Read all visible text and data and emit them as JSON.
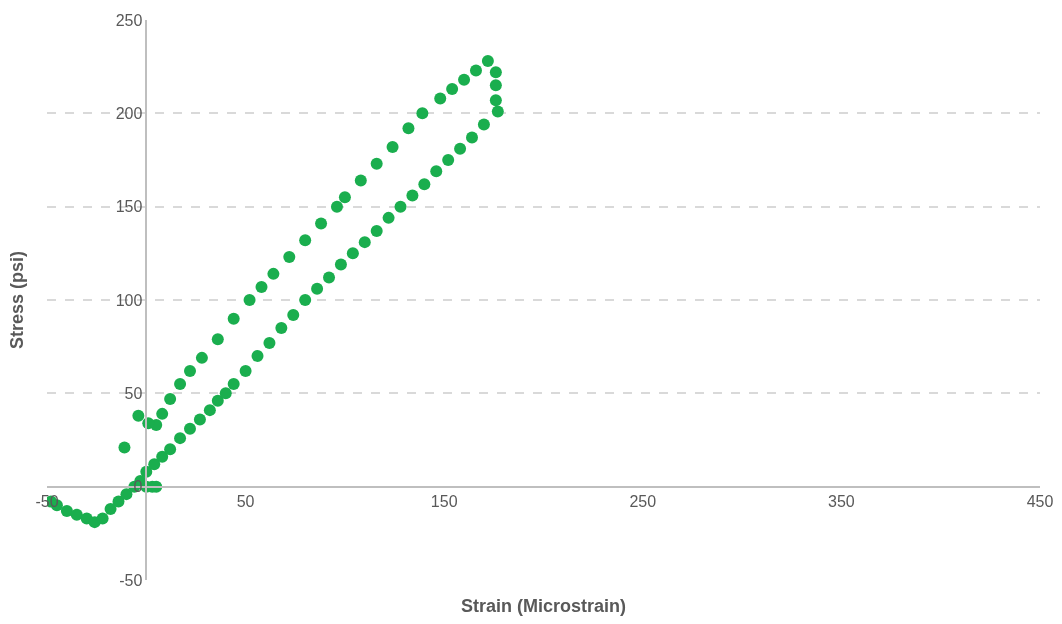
{
  "chart_data": {
    "type": "scatter",
    "xlabel": "Strain (Microstrain)",
    "ylabel": "Stress (psi)",
    "xlim": [
      -50,
      450
    ],
    "xticks": [
      -50,
      50,
      150,
      250,
      350,
      450
    ],
    "ylim": [
      -50,
      250
    ],
    "yticks": [
      -50,
      0,
      50,
      100,
      150,
      200,
      250
    ],
    "grid": "y",
    "marker": "circle",
    "series": [
      {
        "color": "#1aae4e",
        "x": [
          -48,
          -45,
          -40,
          -35,
          -30,
          -26,
          -22,
          -18,
          -14,
          -10,
          -6,
          -3,
          0,
          4,
          8,
          12,
          17,
          22,
          27,
          32,
          36,
          40,
          44,
          50,
          56,
          62,
          68,
          74,
          80,
          86,
          92,
          98,
          104,
          110,
          116,
          122,
          128,
          134,
          140,
          146,
          152,
          158,
          164,
          170,
          177,
          176,
          176,
          176,
          172,
          166,
          160,
          154,
          148,
          139,
          132,
          124,
          116,
          108,
          100,
          96,
          88,
          80,
          72,
          64,
          58,
          52,
          44,
          36,
          28,
          22,
          17,
          12,
          8,
          5,
          1,
          -4,
          -11,
          0,
          3,
          5
        ],
        "values": [
          -8,
          -10,
          -13,
          -15,
          -17,
          -19,
          -17,
          -12,
          -8,
          -4,
          0,
          3,
          8,
          12,
          16,
          20,
          26,
          31,
          36,
          41,
          46,
          50,
          55,
          62,
          70,
          77,
          85,
          92,
          100,
          106,
          112,
          119,
          125,
          131,
          137,
          144,
          150,
          156,
          162,
          169,
          175,
          181,
          187,
          194,
          201,
          207,
          215,
          222,
          228,
          223,
          218,
          213,
          208,
          200,
          192,
          182,
          173,
          164,
          155,
          150,
          141,
          132,
          123,
          114,
          107,
          100,
          90,
          79,
          69,
          62,
          55,
          47,
          39,
          33,
          34,
          38,
          21,
          0,
          0,
          0
        ]
      }
    ]
  }
}
